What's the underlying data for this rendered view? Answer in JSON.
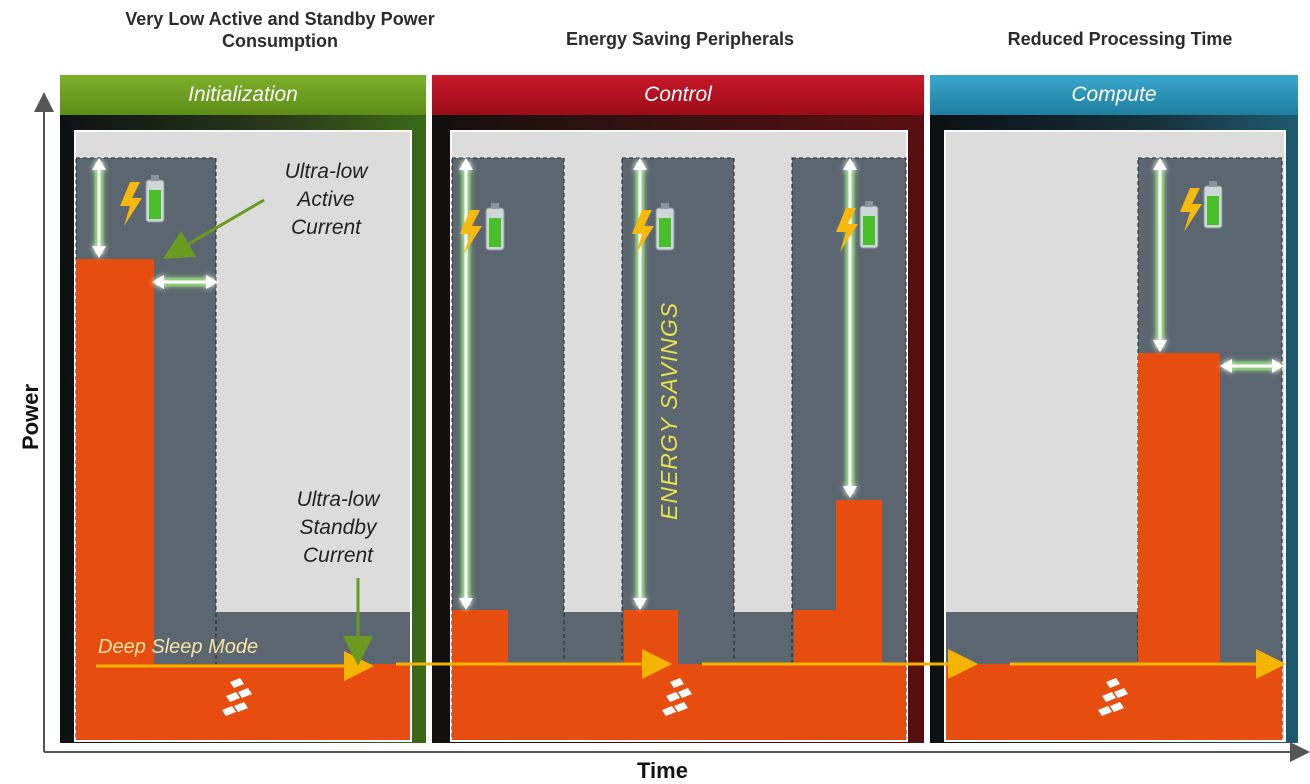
{
  "headers": {
    "left": "Very Low Active and Standby Power Consumption",
    "middle": "Energy Saving Peripherals",
    "right": "Reduced Processing Time"
  },
  "panels": [
    {
      "title": "Initialization",
      "color": "#6a9a20"
    },
    {
      "title": "Control",
      "color": "#b0101c"
    },
    {
      "title": "Compute",
      "color": "#2a93b8"
    }
  ],
  "annotations": {
    "active_current": [
      "Ultra-low",
      "Active",
      "Current"
    ],
    "standby_current": [
      "Ultra-low",
      "Standby",
      "Current"
    ],
    "deep_sleep": "Deep Sleep Mode",
    "energy_savings": "ENERGY SAVINGS"
  },
  "axes": {
    "y_label": "Power",
    "x_label": "Time"
  },
  "colors": {
    "active": "#e64d0e",
    "slot": "#5c6670",
    "arrow": "#f4b400",
    "glow": "#5fd13a",
    "pointer": "#6a9a20"
  },
  "icons": [
    "battery-lightning-icon",
    "freescale-logo-icon"
  ]
}
